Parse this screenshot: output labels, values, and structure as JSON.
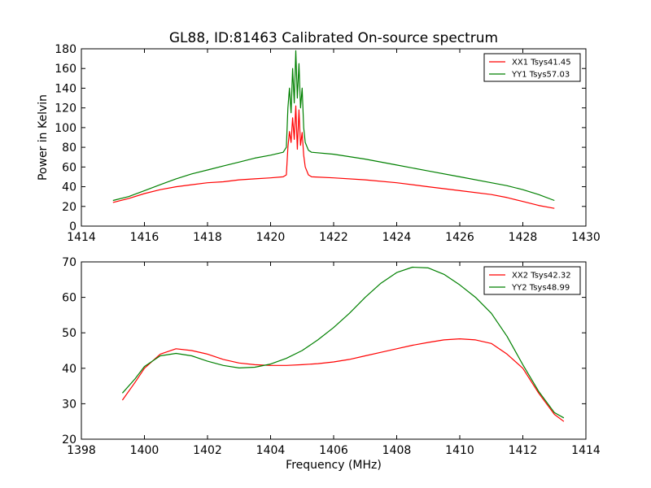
{
  "chart_data": [
    {
      "type": "line",
      "title": "GL88, ID:81463 Calibrated On-source spectrum",
      "xlabel": "",
      "ylabel": "Power in Kelvin",
      "xlim": [
        1414,
        1430
      ],
      "ylim": [
        0,
        180
      ],
      "xticks": [
        "1414",
        "1416",
        "1418",
        "1420",
        "1422",
        "1424",
        "1426",
        "1428",
        "1430"
      ],
      "yticks": [
        "0",
        "20",
        "40",
        "60",
        "80",
        "100",
        "120",
        "140",
        "160",
        "180"
      ],
      "legend_position": "top-right",
      "series": [
        {
          "name": "XX1 Tsys41.45",
          "color": "#ff0000",
          "points": [
            [
              1415.0,
              24
            ],
            [
              1415.5,
              28
            ],
            [
              1416.0,
              33
            ],
            [
              1416.5,
              37
            ],
            [
              1417.0,
              40
            ],
            [
              1417.5,
              42
            ],
            [
              1418.0,
              44
            ],
            [
              1418.5,
              45
            ],
            [
              1419.0,
              47
            ],
            [
              1419.5,
              48
            ],
            [
              1420.0,
              49
            ],
            [
              1420.4,
              50
            ],
            [
              1420.5,
              52
            ],
            [
              1420.55,
              80
            ],
            [
              1420.6,
              96
            ],
            [
              1420.65,
              85
            ],
            [
              1420.7,
              110
            ],
            [
              1420.75,
              88
            ],
            [
              1420.8,
              122
            ],
            [
              1420.85,
              78
            ],
            [
              1420.9,
              118
            ],
            [
              1420.95,
              82
            ],
            [
              1421.0,
              95
            ],
            [
              1421.05,
              72
            ],
            [
              1421.1,
              60
            ],
            [
              1421.2,
              52
            ],
            [
              1421.3,
              50
            ],
            [
              1422.0,
              49
            ],
            [
              1423.0,
              47
            ],
            [
              1424.0,
              44
            ],
            [
              1425.0,
              40
            ],
            [
              1426.0,
              36
            ],
            [
              1427.0,
              32
            ],
            [
              1427.5,
              29
            ],
            [
              1428.0,
              25
            ],
            [
              1428.5,
              21
            ],
            [
              1429.0,
              18
            ]
          ]
        },
        {
          "name": "YY1 Tsys57.03",
          "color": "#008000",
          "points": [
            [
              1415.0,
              26
            ],
            [
              1415.5,
              30
            ],
            [
              1416.0,
              36
            ],
            [
              1416.5,
              42
            ],
            [
              1417.0,
              48
            ],
            [
              1417.5,
              53
            ],
            [
              1418.0,
              57
            ],
            [
              1418.5,
              61
            ],
            [
              1419.0,
              65
            ],
            [
              1419.5,
              69
            ],
            [
              1420.0,
              72
            ],
            [
              1420.4,
              75
            ],
            [
              1420.5,
              80
            ],
            [
              1420.55,
              120
            ],
            [
              1420.6,
              140
            ],
            [
              1420.65,
              115
            ],
            [
              1420.7,
              160
            ],
            [
              1420.75,
              125
            ],
            [
              1420.8,
              178
            ],
            [
              1420.85,
              130
            ],
            [
              1420.9,
              165
            ],
            [
              1420.95,
              120
            ],
            [
              1421.0,
              140
            ],
            [
              1421.05,
              100
            ],
            [
              1421.1,
              85
            ],
            [
              1421.2,
              77
            ],
            [
              1421.3,
              75
            ],
            [
              1422.0,
              73
            ],
            [
              1423.0,
              68
            ],
            [
              1424.0,
              62
            ],
            [
              1425.0,
              56
            ],
            [
              1426.0,
              50
            ],
            [
              1427.0,
              44
            ],
            [
              1427.5,
              41
            ],
            [
              1428.0,
              37
            ],
            [
              1428.5,
              32
            ],
            [
              1429.0,
              26
            ]
          ]
        }
      ]
    },
    {
      "type": "line",
      "title": "",
      "xlabel": "Frequency (MHz)",
      "ylabel": "",
      "xlim": [
        1398,
        1414
      ],
      "ylim": [
        20,
        70
      ],
      "xticks": [
        "1398",
        "1400",
        "1402",
        "1404",
        "1406",
        "1408",
        "1410",
        "1412",
        "1414"
      ],
      "yticks": [
        "20",
        "30",
        "40",
        "50",
        "60",
        "70"
      ],
      "legend_position": "top-right",
      "series": [
        {
          "name": "XX2 Tsys42.32",
          "color": "#ff0000",
          "points": [
            [
              1399.3,
              31
            ],
            [
              1399.7,
              36
            ],
            [
              1400.0,
              40
            ],
            [
              1400.5,
              44
            ],
            [
              1401.0,
              45.5
            ],
            [
              1401.5,
              45
            ],
            [
              1402.0,
              44
            ],
            [
              1402.5,
              42.5
            ],
            [
              1403.0,
              41.5
            ],
            [
              1403.5,
              41
            ],
            [
              1404.0,
              40.8
            ],
            [
              1404.5,
              40.8
            ],
            [
              1405.0,
              41
            ],
            [
              1405.5,
              41.3
            ],
            [
              1406.0,
              41.8
            ],
            [
              1406.5,
              42.5
            ],
            [
              1407.0,
              43.5
            ],
            [
              1407.5,
              44.5
            ],
            [
              1408.0,
              45.5
            ],
            [
              1408.5,
              46.5
            ],
            [
              1409.0,
              47.3
            ],
            [
              1409.5,
              48
            ],
            [
              1410.0,
              48.3
            ],
            [
              1410.5,
              48
            ],
            [
              1411.0,
              47
            ],
            [
              1411.5,
              44
            ],
            [
              1412.0,
              40
            ],
            [
              1412.5,
              33
            ],
            [
              1413.0,
              27
            ],
            [
              1413.3,
              25
            ]
          ]
        },
        {
          "name": "YY2 Tsys48.99",
          "color": "#008000",
          "points": [
            [
              1399.3,
              33
            ],
            [
              1399.7,
              37
            ],
            [
              1400.0,
              40.5
            ],
            [
              1400.5,
              43.5
            ],
            [
              1401.0,
              44.2
            ],
            [
              1401.5,
              43.5
            ],
            [
              1402.0,
              42
            ],
            [
              1402.5,
              40.8
            ],
            [
              1403.0,
              40.1
            ],
            [
              1403.5,
              40.3
            ],
            [
              1404.0,
              41.2
            ],
            [
              1404.5,
              42.8
            ],
            [
              1405.0,
              45
            ],
            [
              1405.5,
              48
            ],
            [
              1406.0,
              51.5
            ],
            [
              1406.5,
              55.5
            ],
            [
              1407.0,
              60
            ],
            [
              1407.5,
              64
            ],
            [
              1408.0,
              67
            ],
            [
              1408.5,
              68.5
            ],
            [
              1409.0,
              68.3
            ],
            [
              1409.5,
              66.5
            ],
            [
              1410.0,
              63.5
            ],
            [
              1410.5,
              60
            ],
            [
              1411.0,
              55.5
            ],
            [
              1411.5,
              49
            ],
            [
              1412.0,
              41
            ],
            [
              1412.5,
              33.5
            ],
            [
              1413.0,
              27.5
            ],
            [
              1413.3,
              26
            ]
          ]
        }
      ]
    }
  ]
}
